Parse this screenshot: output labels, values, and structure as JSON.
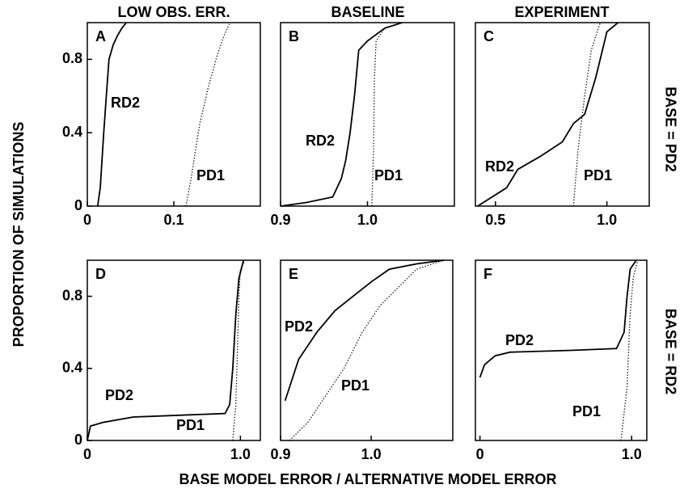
{
  "column_titles": [
    "LOW OBS. ERR.",
    "BASELINE",
    "EXPERIMENT"
  ],
  "row_labels": [
    "BASE = PD2",
    "BASE = RD2"
  ],
  "y_label": "PROPORTION OF SIMULATIONS",
  "x_label": "BASE MODEL ERROR / ALTERNATIVE MODEL ERROR",
  "chart_data": [
    {
      "type": "line",
      "title": "A",
      "xlim": [
        0,
        0.2
      ],
      "xticks": [
        0,
        0.1
      ],
      "ylim": [
        0,
        1
      ],
      "yticks": [
        0,
        0.4,
        0.8
      ],
      "series": [
        {
          "name": "RD2",
          "color": "#000000",
          "line_style": "solid",
          "x": [
            0.012,
            0.015,
            0.019,
            0.022,
            0.025,
            0.03,
            0.035,
            0.04,
            0.045
          ],
          "values": [
            0,
            0.1,
            0.4,
            0.6,
            0.8,
            0.88,
            0.93,
            0.97,
            1
          ]
        },
        {
          "name": "PD1",
          "color": "#000000",
          "line_style": "dotted",
          "x": [
            0.114,
            0.12,
            0.13,
            0.14,
            0.15,
            0.158,
            0.165
          ],
          "values": [
            0,
            0.15,
            0.45,
            0.65,
            0.82,
            0.93,
            1
          ]
        }
      ]
    },
    {
      "type": "line",
      "title": "B",
      "xlim": [
        0.9,
        1.1
      ],
      "xticks": [
        0.9,
        {
          "value": 1,
          "label": "1.0"
        }
      ],
      "ylim": [
        0,
        1
      ],
      "series": [
        {
          "name": "RD2",
          "color": "#000000",
          "line_style": "solid",
          "x": [
            0.9,
            0.93,
            0.96,
            0.97,
            0.975,
            0.98,
            0.985,
            0.99,
            1.0,
            1.02,
            1.04
          ],
          "values": [
            0,
            0.02,
            0.05,
            0.15,
            0.25,
            0.4,
            0.6,
            0.85,
            0.9,
            0.97,
            1
          ]
        },
        {
          "name": "PD1",
          "color": "#000000",
          "line_style": "dotted",
          "x": [
            1.005,
            1.007,
            1.008,
            1.01,
            1.02,
            1.04
          ],
          "values": [
            0,
            0.3,
            0.7,
            0.9,
            0.97,
            1
          ]
        }
      ]
    },
    {
      "type": "line",
      "title": "C",
      "xlim": [
        0.41,
        1.19
      ],
      "xticks": [
        0.5,
        {
          "value": 1,
          "label": "1.0"
        }
      ],
      "ylim": [
        0,
        1
      ],
      "series": [
        {
          "name": "RD2",
          "color": "#000000",
          "line_style": "solid",
          "x": [
            0.42,
            0.55,
            0.6,
            0.7,
            0.8,
            0.85,
            0.9,
            0.95,
            0.98,
            1.0,
            1.05
          ],
          "values": [
            0,
            0.1,
            0.2,
            0.27,
            0.35,
            0.45,
            0.5,
            0.7,
            0.85,
            0.95,
            1
          ]
        },
        {
          "name": "PD1",
          "color": "#000000",
          "line_style": "dotted",
          "x": [
            0.85,
            0.87,
            0.9,
            0.93,
            0.97
          ],
          "values": [
            0,
            0.3,
            0.6,
            0.85,
            1
          ]
        }
      ]
    },
    {
      "type": "line",
      "title": "D",
      "xlim": [
        0,
        1.13
      ],
      "xticks": [
        0,
        {
          "value": 1,
          "label": "1.0"
        }
      ],
      "ylim": [
        0,
        1
      ],
      "yticks": [
        0,
        0.4,
        0.8
      ],
      "series": [
        {
          "name": "PD2",
          "color": "#000000",
          "line_style": "solid",
          "x": [
            0,
            0.02,
            0.1,
            0.3,
            0.6,
            0.9,
            0.93,
            0.95,
            0.97,
            0.99,
            1.02
          ],
          "values": [
            0,
            0.08,
            0.1,
            0.13,
            0.14,
            0.15,
            0.2,
            0.4,
            0.7,
            0.9,
            1
          ]
        },
        {
          "name": "PD1",
          "color": "#000000",
          "line_style": "dotted",
          "x": [
            0.95,
            0.97,
            0.98,
            0.99,
            1.0,
            1.03
          ],
          "values": [
            0,
            0.2,
            0.5,
            0.8,
            0.95,
            1
          ]
        }
      ]
    },
    {
      "type": "line",
      "title": "E",
      "xlim": [
        0.9,
        1.09
      ],
      "xticks": [
        0.9,
        {
          "value": 1,
          "label": "1.0"
        }
      ],
      "ylim": [
        0,
        1
      ],
      "series": [
        {
          "name": "PD2",
          "color": "#000000",
          "line_style": "solid",
          "x": [
            0.905,
            0.92,
            0.94,
            0.96,
            0.98,
            1.0,
            1.02,
            1.05,
            1.08
          ],
          "values": [
            0.22,
            0.45,
            0.6,
            0.72,
            0.8,
            0.88,
            0.95,
            0.98,
            1
          ]
        },
        {
          "name": "PD1",
          "color": "#000000",
          "line_style": "dotted",
          "x": [
            0.91,
            0.93,
            0.95,
            0.97,
            0.99,
            1.01,
            1.03,
            1.05,
            1.08
          ],
          "values": [
            0,
            0.1,
            0.25,
            0.4,
            0.6,
            0.75,
            0.85,
            0.95,
            1
          ]
        }
      ]
    },
    {
      "type": "line",
      "title": "F",
      "xlim": [
        -0.03,
        1.1
      ],
      "xticks": [
        0,
        {
          "value": 1,
          "label": "1.0"
        }
      ],
      "ylim": [
        0,
        1
      ],
      "series": [
        {
          "name": "PD2",
          "color": "#000000",
          "line_style": "solid",
          "x": [
            0,
            0.03,
            0.1,
            0.2,
            0.6,
            0.9,
            0.95,
            0.97,
            0.99,
            1.03
          ],
          "values": [
            0.35,
            0.42,
            0.47,
            0.49,
            0.5,
            0.51,
            0.6,
            0.8,
            0.95,
            1
          ]
        },
        {
          "name": "PD1",
          "color": "#000000",
          "line_style": "dotted",
          "x": [
            0.93,
            0.97,
            0.99,
            1.01,
            1.04
          ],
          "values": [
            0,
            0.3,
            0.7,
            0.9,
            1
          ]
        }
      ]
    }
  ]
}
